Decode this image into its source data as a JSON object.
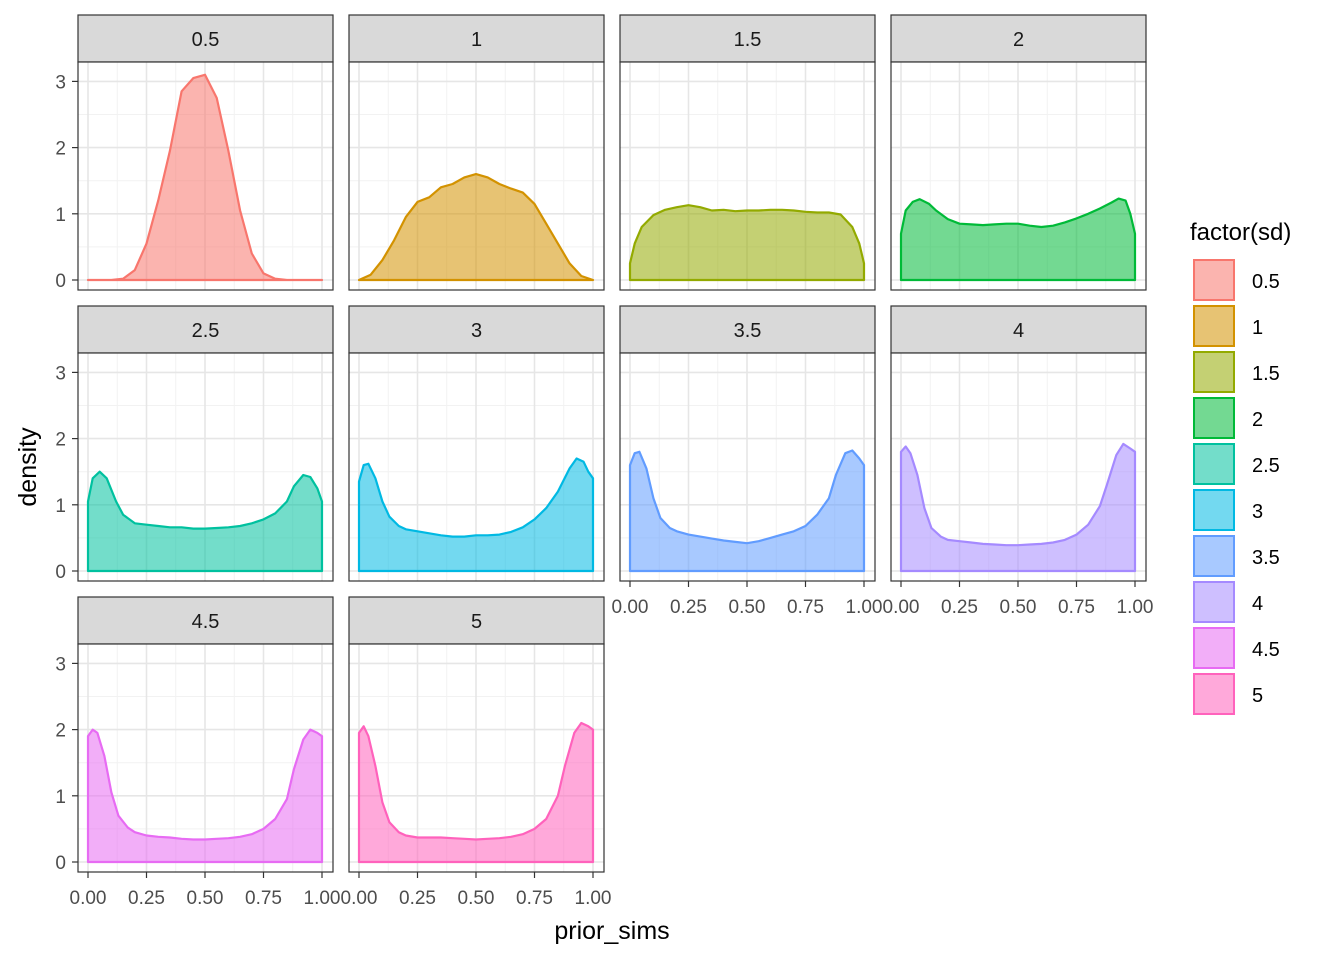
{
  "chart_data": {
    "type": "area",
    "title": "",
    "xlabel": "prior_sims",
    "ylabel": "density",
    "xlim": [
      0,
      1
    ],
    "ylim": [
      0,
      3.25
    ],
    "x_ticks": [
      "0.00",
      "0.25",
      "0.50",
      "0.75",
      "1.00"
    ],
    "y_ticks": [
      "0",
      "1",
      "2",
      "3"
    ],
    "legend": {
      "title": "factor(sd)",
      "placement": "right"
    },
    "facet_layout": {
      "columns": 4,
      "rows": 3
    },
    "series": [
      {
        "name": "0.5",
        "color": "#F8766D",
        "x": [
          0,
          0.1,
          0.15,
          0.2,
          0.25,
          0.3,
          0.35,
          0.4,
          0.45,
          0.5,
          0.55,
          0.6,
          0.65,
          0.7,
          0.75,
          0.8,
          0.85,
          0.9,
          1
        ],
        "y": [
          0,
          0,
          0.02,
          0.15,
          0.55,
          1.2,
          1.95,
          2.85,
          3.05,
          3.1,
          2.75,
          1.95,
          1.05,
          0.4,
          0.1,
          0.02,
          0,
          0,
          0
        ]
      },
      {
        "name": "1",
        "color": "#D39200",
        "x": [
          0,
          0.05,
          0.1,
          0.15,
          0.2,
          0.25,
          0.3,
          0.35,
          0.4,
          0.45,
          0.5,
          0.55,
          0.6,
          0.65,
          0.7,
          0.75,
          0.8,
          0.85,
          0.9,
          0.95,
          1
        ],
        "y": [
          0,
          0.08,
          0.3,
          0.6,
          0.95,
          1.18,
          1.25,
          1.4,
          1.45,
          1.55,
          1.6,
          1.55,
          1.45,
          1.38,
          1.32,
          1.15,
          0.85,
          0.55,
          0.25,
          0.06,
          0
        ]
      },
      {
        "name": "1.5",
        "color": "#93AA00",
        "x": [
          0,
          0.02,
          0.05,
          0.1,
          0.15,
          0.2,
          0.25,
          0.3,
          0.35,
          0.4,
          0.45,
          0.5,
          0.55,
          0.6,
          0.65,
          0.7,
          0.75,
          0.8,
          0.85,
          0.9,
          0.95,
          0.98,
          1
        ],
        "y": [
          0.25,
          0.55,
          0.8,
          0.98,
          1.06,
          1.1,
          1.13,
          1.1,
          1.05,
          1.06,
          1.04,
          1.05,
          1.05,
          1.06,
          1.06,
          1.05,
          1.03,
          1.02,
          1.02,
          0.99,
          0.8,
          0.55,
          0.25
        ]
      },
      {
        "name": "2",
        "color": "#00BA38",
        "x": [
          0,
          0.02,
          0.05,
          0.08,
          0.12,
          0.15,
          0.2,
          0.25,
          0.3,
          0.35,
          0.4,
          0.45,
          0.5,
          0.55,
          0.6,
          0.65,
          0.7,
          0.75,
          0.8,
          0.85,
          0.9,
          0.93,
          0.96,
          0.98,
          1
        ],
        "y": [
          0.7,
          1.05,
          1.18,
          1.22,
          1.15,
          1.05,
          0.92,
          0.85,
          0.84,
          0.83,
          0.84,
          0.85,
          0.85,
          0.82,
          0.8,
          0.82,
          0.87,
          0.93,
          1.0,
          1.08,
          1.17,
          1.23,
          1.2,
          1.0,
          0.7
        ]
      },
      {
        "name": "2.5",
        "color": "#00C19F",
        "x": [
          0,
          0.02,
          0.05,
          0.08,
          0.12,
          0.15,
          0.2,
          0.25,
          0.3,
          0.35,
          0.4,
          0.45,
          0.5,
          0.55,
          0.6,
          0.65,
          0.7,
          0.75,
          0.8,
          0.85,
          0.88,
          0.92,
          0.95,
          0.98,
          1
        ],
        "y": [
          1.05,
          1.4,
          1.5,
          1.4,
          1.05,
          0.85,
          0.72,
          0.7,
          0.68,
          0.66,
          0.66,
          0.64,
          0.64,
          0.65,
          0.66,
          0.68,
          0.72,
          0.78,
          0.87,
          1.05,
          1.28,
          1.45,
          1.42,
          1.25,
          1.05
        ]
      },
      {
        "name": "3",
        "color": "#00B9E3",
        "x": [
          0,
          0.02,
          0.04,
          0.07,
          0.1,
          0.13,
          0.17,
          0.2,
          0.25,
          0.3,
          0.35,
          0.4,
          0.45,
          0.5,
          0.55,
          0.6,
          0.65,
          0.7,
          0.75,
          0.8,
          0.85,
          0.9,
          0.93,
          0.96,
          0.98,
          1
        ],
        "y": [
          1.35,
          1.6,
          1.62,
          1.4,
          1.05,
          0.82,
          0.68,
          0.63,
          0.6,
          0.57,
          0.54,
          0.52,
          0.52,
          0.54,
          0.54,
          0.55,
          0.59,
          0.66,
          0.78,
          0.95,
          1.2,
          1.55,
          1.7,
          1.65,
          1.5,
          1.4
        ]
      },
      {
        "name": "3.5",
        "color": "#619CFF",
        "x": [
          0,
          0.02,
          0.04,
          0.07,
          0.1,
          0.13,
          0.17,
          0.2,
          0.25,
          0.3,
          0.35,
          0.4,
          0.45,
          0.5,
          0.55,
          0.6,
          0.65,
          0.7,
          0.75,
          0.8,
          0.85,
          0.88,
          0.92,
          0.95,
          0.98,
          1
        ],
        "y": [
          1.6,
          1.78,
          1.8,
          1.55,
          1.1,
          0.8,
          0.65,
          0.6,
          0.55,
          0.52,
          0.49,
          0.46,
          0.44,
          0.42,
          0.45,
          0.5,
          0.55,
          0.6,
          0.68,
          0.85,
          1.1,
          1.45,
          1.78,
          1.82,
          1.7,
          1.6
        ]
      },
      {
        "name": "4",
        "color": "#DB72FB",
        "fill": "#A58AFF",
        "x": [
          0,
          0.02,
          0.04,
          0.07,
          0.1,
          0.13,
          0.17,
          0.2,
          0.25,
          0.3,
          0.35,
          0.4,
          0.45,
          0.5,
          0.55,
          0.6,
          0.65,
          0.7,
          0.75,
          0.8,
          0.85,
          0.88,
          0.92,
          0.95,
          0.98,
          1
        ],
        "y": [
          1.8,
          1.88,
          1.78,
          1.45,
          0.95,
          0.65,
          0.52,
          0.47,
          0.45,
          0.43,
          0.41,
          0.4,
          0.39,
          0.39,
          0.4,
          0.41,
          0.43,
          0.47,
          0.55,
          0.7,
          0.98,
          1.3,
          1.75,
          1.92,
          1.85,
          1.8
        ]
      },
      {
        "name": "4.5",
        "color": "#E76BF3",
        "x": [
          0,
          0.02,
          0.04,
          0.07,
          0.1,
          0.13,
          0.17,
          0.2,
          0.25,
          0.3,
          0.35,
          0.4,
          0.45,
          0.5,
          0.55,
          0.6,
          0.65,
          0.7,
          0.75,
          0.8,
          0.85,
          0.88,
          0.92,
          0.95,
          0.98,
          1
        ],
        "y": [
          1.9,
          2.0,
          1.95,
          1.6,
          1.05,
          0.7,
          0.52,
          0.45,
          0.4,
          0.38,
          0.37,
          0.35,
          0.34,
          0.34,
          0.35,
          0.36,
          0.38,
          0.42,
          0.5,
          0.65,
          0.95,
          1.4,
          1.85,
          2.0,
          1.95,
          1.9
        ]
      },
      {
        "name": "5",
        "color": "#FF62BC",
        "x": [
          0,
          0.02,
          0.04,
          0.07,
          0.1,
          0.13,
          0.17,
          0.2,
          0.25,
          0.3,
          0.35,
          0.4,
          0.45,
          0.5,
          0.55,
          0.6,
          0.65,
          0.7,
          0.75,
          0.8,
          0.85,
          0.88,
          0.92,
          0.95,
          0.98,
          1
        ],
        "y": [
          1.95,
          2.05,
          1.9,
          1.45,
          0.9,
          0.6,
          0.45,
          0.4,
          0.37,
          0.37,
          0.37,
          0.36,
          0.35,
          0.34,
          0.35,
          0.36,
          0.38,
          0.42,
          0.5,
          0.65,
          1.0,
          1.45,
          1.95,
          2.1,
          2.05,
          2.0
        ]
      }
    ]
  }
}
